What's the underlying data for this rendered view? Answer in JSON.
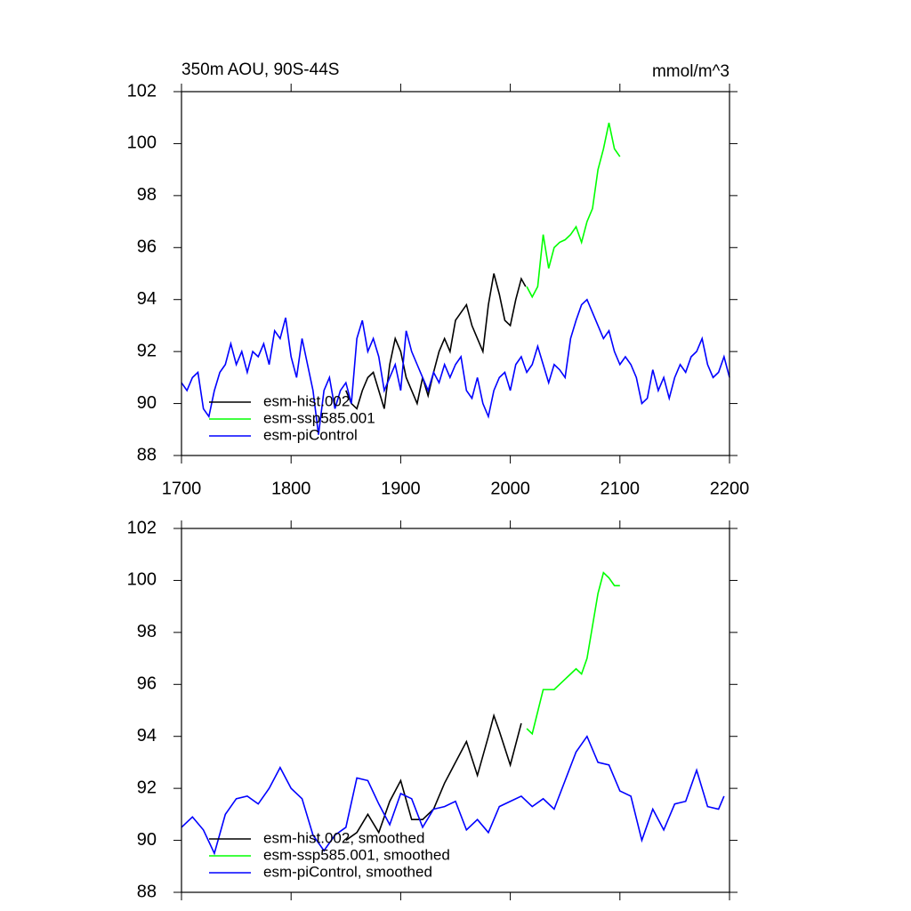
{
  "chart_data": [
    {
      "type": "line",
      "title": "350m AOU, 90S-44S",
      "units": "mmol/m^3",
      "xlim": [
        1700,
        2200
      ],
      "xticks": [
        1700,
        1800,
        1900,
        2000,
        2100,
        2200
      ],
      "ylim": [
        88,
        102
      ],
      "yticks": [
        88,
        90,
        92,
        94,
        96,
        98,
        100,
        102
      ],
      "legend": "lower left",
      "series": [
        {
          "name": "esm-hist.002",
          "color": "#000000",
          "x": [
            1850,
            1855,
            1860,
            1865,
            1870,
            1875,
            1880,
            1885,
            1890,
            1895,
            1900,
            1905,
            1910,
            1915,
            1920,
            1925,
            1930,
            1935,
            1940,
            1945,
            1950,
            1955,
            1960,
            1965,
            1970,
            1975,
            1980,
            1985,
            1990,
            1995,
            2000,
            2005,
            2010,
            2014
          ],
          "values": [
            90.5,
            90.0,
            89.8,
            90.5,
            91.0,
            91.2,
            90.5,
            89.8,
            91.5,
            92.5,
            92.0,
            91.0,
            90.5,
            90.0,
            91.0,
            90.3,
            91.2,
            92.0,
            92.5,
            92.0,
            93.2,
            93.5,
            93.8,
            93.0,
            92.5,
            92.0,
            93.8,
            95.0,
            94.2,
            93.2,
            93.0,
            94.0,
            94.8,
            94.5
          ]
        },
        {
          "name": "esm-ssp585.001",
          "color": "#00ff00",
          "x": [
            2015,
            2020,
            2025,
            2030,
            2035,
            2040,
            2045,
            2050,
            2055,
            2060,
            2065,
            2070,
            2075,
            2080,
            2085,
            2090,
            2095,
            2100
          ],
          "values": [
            94.5,
            94.1,
            94.5,
            96.5,
            95.2,
            96.0,
            96.2,
            96.3,
            96.5,
            96.8,
            96.2,
            97.0,
            97.5,
            99.0,
            99.8,
            100.8,
            99.8,
            99.5
          ]
        },
        {
          "name": "esm-piControl",
          "color": "#0000ff",
          "x": [
            1700,
            1705,
            1710,
            1715,
            1720,
            1725,
            1730,
            1735,
            1740,
            1745,
            1750,
            1755,
            1760,
            1765,
            1770,
            1775,
            1780,
            1785,
            1790,
            1795,
            1800,
            1805,
            1810,
            1815,
            1820,
            1825,
            1830,
            1835,
            1840,
            1845,
            1850,
            1855,
            1860,
            1865,
            1870,
            1875,
            1880,
            1885,
            1890,
            1895,
            1900,
            1905,
            1910,
            1915,
            1920,
            1925,
            1930,
            1935,
            1940,
            1945,
            1950,
            1955,
            1960,
            1965,
            1970,
            1975,
            1980,
            1985,
            1990,
            1995,
            2000,
            2005,
            2010,
            2015,
            2020,
            2025,
            2030,
            2035,
            2040,
            2045,
            2050,
            2055,
            2060,
            2065,
            2070,
            2075,
            2080,
            2085,
            2090,
            2095,
            2100,
            2105,
            2110,
            2115,
            2120,
            2125,
            2130,
            2135,
            2140,
            2145,
            2150,
            2155,
            2160,
            2165,
            2170,
            2175,
            2180,
            2185,
            2190,
            2195,
            2200
          ],
          "values": [
            90.8,
            90.5,
            91.0,
            91.2,
            89.8,
            89.5,
            90.5,
            91.2,
            91.5,
            92.3,
            91.5,
            92.0,
            91.2,
            92.0,
            91.8,
            92.3,
            91.5,
            92.8,
            92.5,
            93.3,
            91.8,
            91.0,
            92.5,
            91.5,
            90.5,
            88.8,
            90.5,
            91.0,
            89.8,
            90.5,
            90.8,
            90.0,
            92.5,
            93.2,
            92.0,
            92.5,
            91.8,
            90.5,
            91.0,
            91.5,
            90.5,
            92.8,
            92.0,
            91.5,
            91.0,
            90.5,
            91.2,
            90.8,
            91.5,
            91.0,
            91.5,
            91.8,
            90.5,
            90.2,
            91.0,
            90.0,
            89.5,
            90.5,
            91.0,
            91.2,
            90.5,
            91.5,
            91.8,
            91.2,
            91.5,
            92.2,
            91.5,
            90.8,
            91.5,
            91.3,
            91.0,
            92.5,
            93.2,
            93.8,
            94.0,
            93.5,
            93.0,
            92.5,
            92.8,
            92.0,
            91.5,
            91.8,
            91.5,
            91.0,
            90.0,
            90.2,
            91.3,
            90.5,
            91.0,
            90.2,
            91.0,
            91.5,
            91.2,
            91.8,
            92.0,
            92.5,
            91.5,
            91.0,
            91.2,
            91.8,
            91.0
          ]
        }
      ]
    },
    {
      "type": "line",
      "xlim": [
        1700,
        2200
      ],
      "ylim": [
        88,
        102
      ],
      "yticks": [
        88,
        90,
        92,
        94,
        96,
        98,
        100,
        102
      ],
      "legend": "lower left",
      "series": [
        {
          "name": "esm-hist.002, smoothed",
          "color": "#000000",
          "x": [
            1850,
            1860,
            1870,
            1880,
            1890,
            1900,
            1910,
            1920,
            1930,
            1940,
            1950,
            1960,
            1970,
            1980,
            1985,
            1990,
            2000,
            2010
          ],
          "values": [
            90.0,
            90.3,
            91.0,
            90.3,
            91.5,
            92.3,
            90.8,
            90.8,
            91.2,
            92.2,
            93.0,
            93.8,
            92.5,
            94.0,
            94.8,
            94.2,
            92.9,
            94.5
          ]
        },
        {
          "name": "esm-ssp585.001, smoothed",
          "color": "#00ff00",
          "x": [
            2015,
            2020,
            2030,
            2040,
            2050,
            2060,
            2065,
            2070,
            2080,
            2085,
            2090,
            2095,
            2100
          ],
          "values": [
            94.3,
            94.1,
            95.8,
            95.8,
            96.2,
            96.6,
            96.4,
            97.0,
            99.5,
            100.3,
            100.1,
            99.8,
            99.8
          ]
        },
        {
          "name": "esm-piControl, smoothed",
          "color": "#0000ff",
          "x": [
            1700,
            1710,
            1720,
            1730,
            1740,
            1750,
            1760,
            1770,
            1780,
            1790,
            1800,
            1810,
            1820,
            1830,
            1840,
            1850,
            1860,
            1870,
            1880,
            1890,
            1900,
            1910,
            1920,
            1930,
            1940,
            1950,
            1960,
            1970,
            1980,
            1990,
            2000,
            2010,
            2020,
            2030,
            2040,
            2050,
            2060,
            2070,
            2080,
            2090,
            2100,
            2110,
            2120,
            2130,
            2140,
            2150,
            2160,
            2170,
            2180,
            2190,
            2195
          ],
          "values": [
            90.5,
            90.9,
            90.4,
            89.5,
            91.0,
            91.6,
            91.7,
            91.4,
            92.0,
            92.8,
            92.0,
            91.6,
            90.2,
            89.6,
            90.2,
            90.5,
            92.4,
            92.3,
            91.4,
            90.6,
            91.8,
            91.6,
            90.5,
            91.2,
            91.3,
            91.5,
            90.4,
            90.8,
            90.3,
            91.3,
            91.5,
            91.7,
            91.3,
            91.6,
            91.2,
            92.3,
            93.4,
            94.0,
            93.0,
            92.9,
            91.9,
            91.7,
            90.0,
            91.2,
            90.4,
            91.4,
            91.5,
            92.7,
            91.3,
            91.2,
            91.7
          ]
        }
      ]
    }
  ]
}
